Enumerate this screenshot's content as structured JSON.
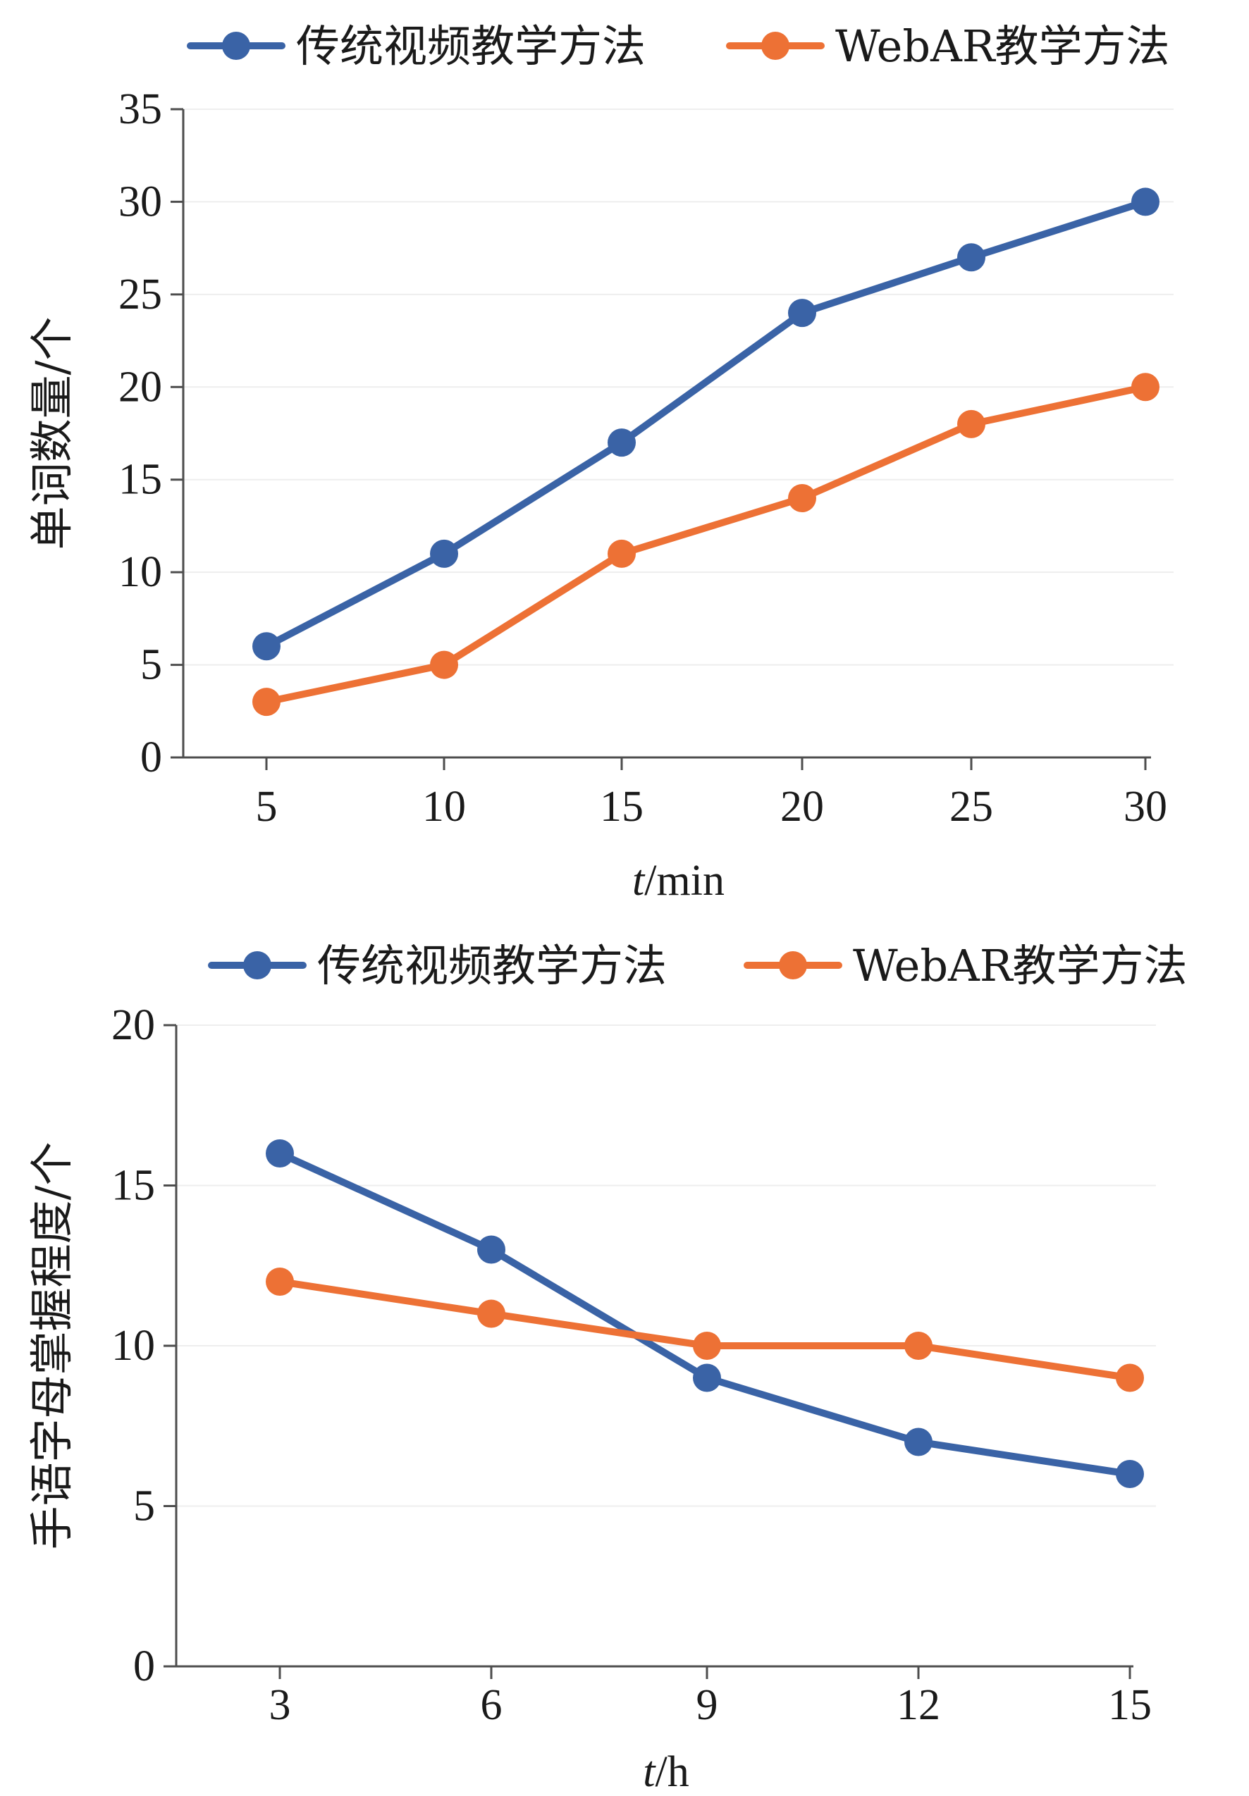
{
  "chart_data": [
    {
      "type": "line",
      "title": "",
      "xlabel_var": "t",
      "xlabel_unit": "/min",
      "ylabel": "单词数量/个",
      "x": [
        5,
        10,
        15,
        20,
        25,
        30
      ],
      "categories": [
        "5",
        "10",
        "15",
        "20",
        "25",
        "30"
      ],
      "ylim": [
        0,
        35
      ],
      "yticks": [
        0,
        5,
        10,
        15,
        20,
        25,
        30,
        35
      ],
      "grid": "horizontal-faint",
      "legend_position": "top",
      "series": [
        {
          "name": "传统视频教学方法",
          "color": "#3a63a6",
          "values": [
            6,
            11,
            17,
            24,
            27,
            30
          ]
        },
        {
          "name": "WebAR教学方法",
          "color": "#ed7135",
          "values": [
            3,
            5,
            11,
            14,
            18,
            20
          ]
        }
      ]
    },
    {
      "type": "line",
      "title": "",
      "xlabel_var": "t",
      "xlabel_unit": "/h",
      "ylabel": "手语字母掌握程度/个",
      "x": [
        3,
        6,
        9,
        12,
        15
      ],
      "categories": [
        "3",
        "6",
        "9",
        "12",
        "15"
      ],
      "ylim": [
        0,
        20
      ],
      "yticks": [
        0,
        5,
        10,
        15,
        20
      ],
      "grid": "horizontal-faint",
      "legend_position": "top",
      "series": [
        {
          "name": "传统视频教学方法",
          "color": "#3a63a6",
          "values": [
            16,
            13,
            9,
            7,
            6
          ]
        },
        {
          "name": "WebAR教学方法",
          "color": "#ed7135",
          "values": [
            12,
            11,
            10,
            10,
            9
          ]
        }
      ]
    }
  ]
}
